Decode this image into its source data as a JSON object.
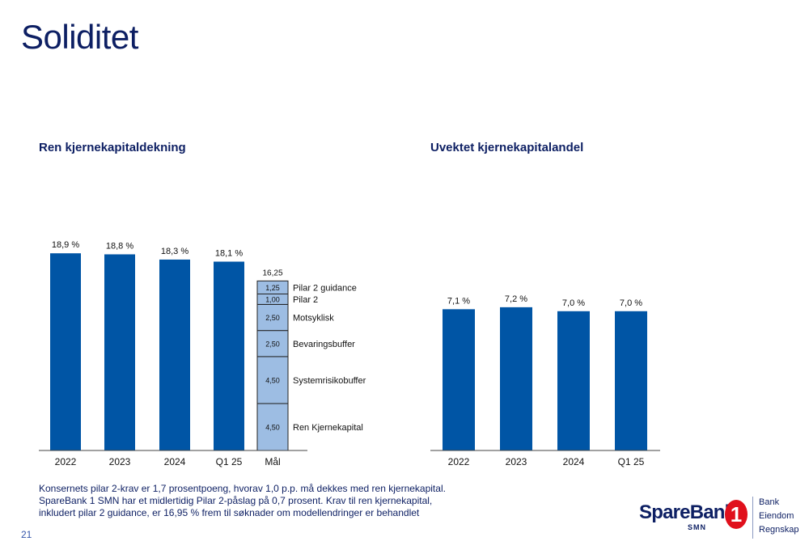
{
  "page_title": "Soliditet",
  "page_number": "21",
  "note_lines": [
    "Konsernets pilar 2-krav er 1,7 prosentpoeng, hvorav 1,0 p.p. må dekkes med ren kjernekapital.",
    "SpareBank 1 SMN har et midlertidig Pilar 2-påslag på 0,7 prosent. Krav til ren kjernekapital,",
    "inkludert pilar 2 guidance, er 16,95 % frem til søknader om modellendringer er behandlet"
  ],
  "logo": {
    "brand": "SpareBank",
    "badge": "1",
    "sub": "SMN",
    "items": [
      "Bank",
      "Eiendom",
      "Regnskap"
    ]
  },
  "colors": {
    "bar": "#0055a5",
    "stack": "#9dbde3",
    "title": "#0d1f63",
    "axis": "#444444"
  },
  "chart_data": [
    {
      "type": "bar",
      "title": "Ren kjernekapitaldekning",
      "categories": [
        "2022",
        "2023",
        "2024",
        "Q1 25"
      ],
      "values": [
        18.9,
        18.8,
        18.3,
        18.1
      ],
      "value_labels": [
        "18,9 %",
        "18,8 %",
        "18,3 %",
        "18,1 %"
      ],
      "target": {
        "category": "Mål",
        "total_label": "16,25",
        "total": 16.25,
        "segments": [
          {
            "name": "Ren Kjernekapital",
            "value": 4.5,
            "label": "4,50"
          },
          {
            "name": "Systemrisikobuffer",
            "value": 4.5,
            "label": "4,50"
          },
          {
            "name": "Bevaringsbuffer",
            "value": 2.5,
            "label": "2,50"
          },
          {
            "name": "Motsyklisk",
            "value": 2.5,
            "label": "2,50"
          },
          {
            "name": "Pilar 2",
            "value": 1.0,
            "label": "1,00"
          },
          {
            "name": "Pilar 2 guidance",
            "value": 1.25,
            "label": "1,25"
          }
        ]
      },
      "ylim": [
        0,
        20
      ]
    },
    {
      "type": "bar",
      "title": "Uvektet kjernekapitalandel",
      "categories": [
        "2022",
        "2023",
        "2024",
        "Q1 25"
      ],
      "values": [
        7.1,
        7.2,
        7.0,
        7.0
      ],
      "value_labels": [
        "7,1 %",
        "7,2 %",
        "7,0 %",
        "7,0 %"
      ],
      "ylim": [
        0,
        8
      ]
    }
  ]
}
